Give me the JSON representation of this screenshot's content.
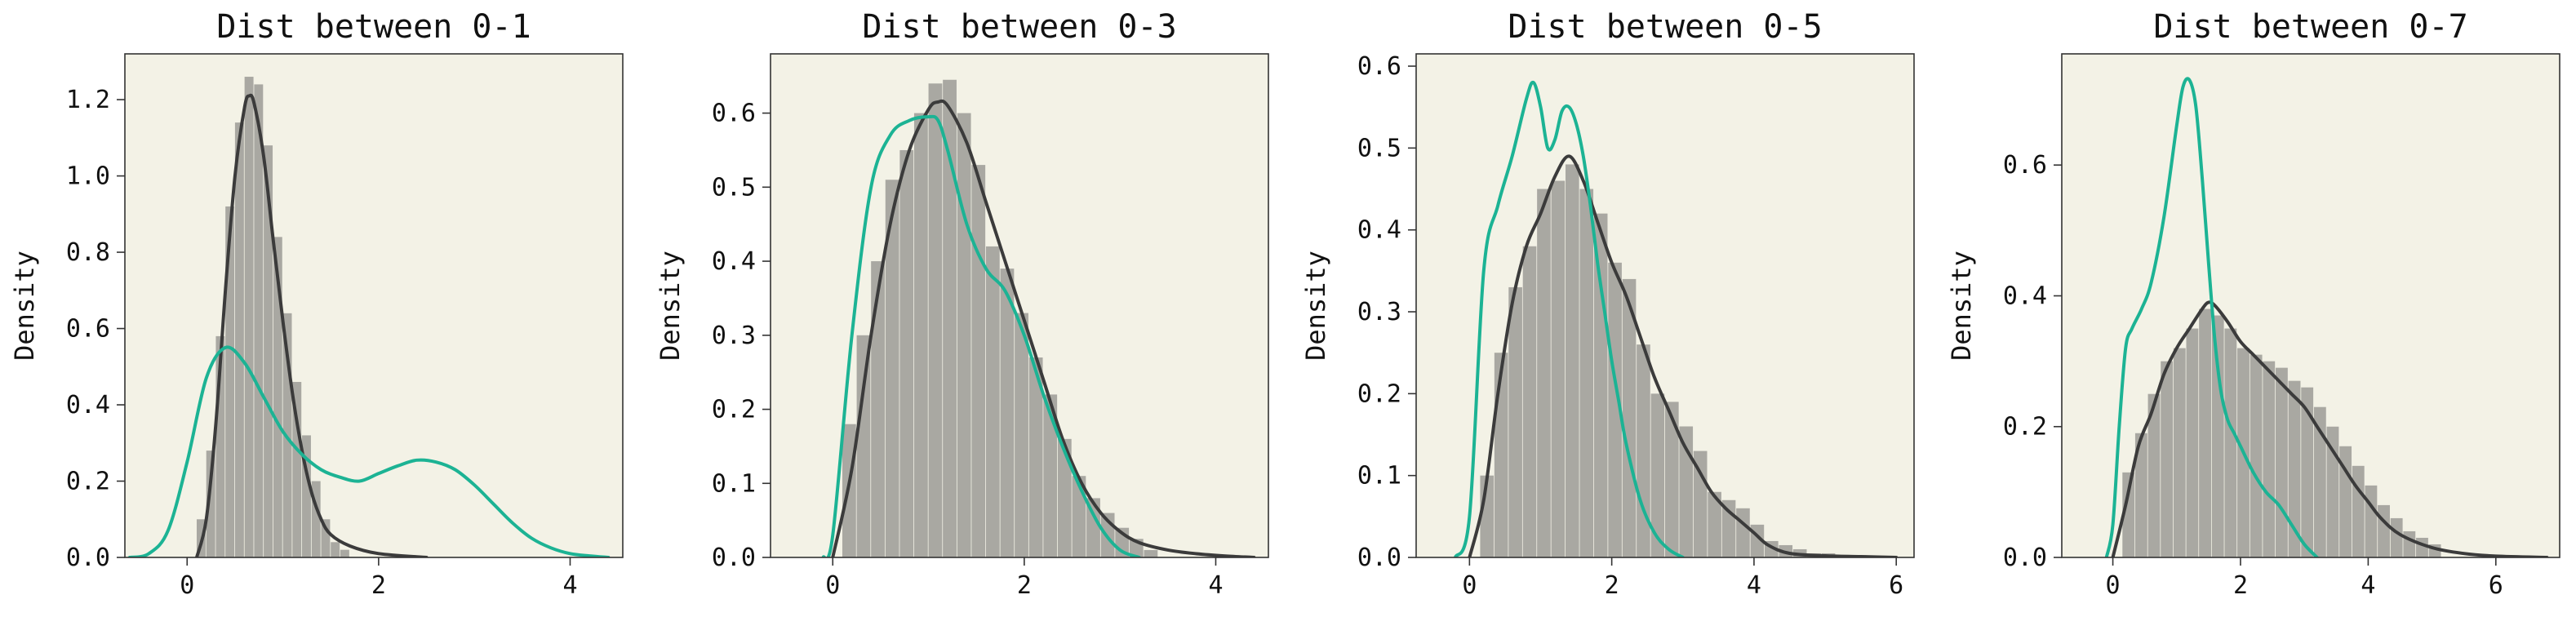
{
  "colors": {
    "plot_background": "#f3f2e6",
    "histogram_fill": "#a9a8a2",
    "kde_dark": "#3b3b3b",
    "kde_teal": "#1cb394",
    "axis": "#333333"
  },
  "chart_data": [
    {
      "type": "area",
      "title": "Dist between 0-1",
      "xlabel": "",
      "ylabel": "Density",
      "xlim": [
        -0.65,
        4.55
      ],
      "ylim": [
        0,
        1.32
      ],
      "xticks": [
        0,
        2,
        4
      ],
      "yticks": [
        0.0,
        0.2,
        0.4,
        0.6,
        0.8,
        1.0,
        1.2
      ],
      "ytick_format": 1,
      "grid": false,
      "histogram": {
        "bin_edges": [
          0.1,
          0.2,
          0.3,
          0.4,
          0.5,
          0.6,
          0.7,
          0.8,
          0.9,
          1.0,
          1.1,
          1.2,
          1.3,
          1.4,
          1.5,
          1.6,
          1.7
        ],
        "values": [
          0.1,
          0.28,
          0.58,
          0.92,
          1.14,
          1.26,
          1.24,
          1.08,
          0.84,
          0.64,
          0.46,
          0.32,
          0.2,
          0.1,
          0.04,
          0.02
        ]
      },
      "series": [
        {
          "color_key": "kde_dark",
          "x": [
            0.1,
            0.2,
            0.3,
            0.4,
            0.5,
            0.6,
            0.65,
            0.7,
            0.8,
            0.9,
            1.0,
            1.1,
            1.2,
            1.3,
            1.4,
            1.5,
            1.7,
            2.0,
            2.5
          ],
          "y": [
            0.0,
            0.1,
            0.35,
            0.7,
            1.0,
            1.18,
            1.21,
            1.19,
            1.05,
            0.83,
            0.62,
            0.43,
            0.28,
            0.17,
            0.1,
            0.06,
            0.03,
            0.01,
            0.0
          ]
        },
        {
          "color_key": "kde_teal",
          "x": [
            -0.6,
            -0.4,
            -0.2,
            0.0,
            0.2,
            0.4,
            0.6,
            0.8,
            1.0,
            1.2,
            1.4,
            1.6,
            1.8,
            2.0,
            2.2,
            2.4,
            2.6,
            2.8,
            3.0,
            3.2,
            3.4,
            3.6,
            3.8,
            4.0,
            4.2,
            4.4
          ],
          "y": [
            0.0,
            0.01,
            0.07,
            0.25,
            0.47,
            0.55,
            0.51,
            0.42,
            0.33,
            0.27,
            0.23,
            0.21,
            0.2,
            0.22,
            0.24,
            0.255,
            0.25,
            0.23,
            0.19,
            0.14,
            0.09,
            0.05,
            0.025,
            0.01,
            0.004,
            0.0
          ]
        }
      ]
    },
    {
      "type": "area",
      "title": "Dist between 0-3",
      "xlabel": "",
      "ylabel": "Density",
      "xlim": [
        -0.65,
        4.55
      ],
      "ylim": [
        0,
        0.68
      ],
      "xticks": [
        0,
        2,
        4
      ],
      "yticks": [
        0.0,
        0.1,
        0.2,
        0.3,
        0.4,
        0.5,
        0.6
      ],
      "ytick_format": 1,
      "grid": false,
      "histogram": {
        "bin_edges": [
          0.1,
          0.25,
          0.4,
          0.55,
          0.7,
          0.85,
          1.0,
          1.15,
          1.3,
          1.45,
          1.6,
          1.75,
          1.9,
          2.05,
          2.2,
          2.35,
          2.5,
          2.65,
          2.8,
          2.95,
          3.1,
          3.25,
          3.4
        ],
        "values": [
          0.18,
          0.3,
          0.4,
          0.51,
          0.55,
          0.6,
          0.64,
          0.645,
          0.6,
          0.53,
          0.42,
          0.39,
          0.33,
          0.27,
          0.22,
          0.16,
          0.11,
          0.08,
          0.06,
          0.04,
          0.025,
          0.01
        ]
      },
      "series": [
        {
          "color_key": "kde_dark",
          "x": [
            0.0,
            0.2,
            0.4,
            0.6,
            0.8,
            1.0,
            1.1,
            1.2,
            1.4,
            1.6,
            1.8,
            2.0,
            2.2,
            2.4,
            2.6,
            2.8,
            3.0,
            3.2,
            3.5,
            3.8,
            4.1,
            4.4
          ],
          "y": [
            0.0,
            0.12,
            0.3,
            0.45,
            0.55,
            0.605,
            0.615,
            0.61,
            0.56,
            0.48,
            0.4,
            0.32,
            0.24,
            0.16,
            0.1,
            0.06,
            0.035,
            0.02,
            0.01,
            0.005,
            0.002,
            0.0
          ]
        },
        {
          "color_key": "kde_teal",
          "x": [
            -0.1,
            0.0,
            0.2,
            0.4,
            0.6,
            0.8,
            1.0,
            1.1,
            1.2,
            1.4,
            1.6,
            1.8,
            2.0,
            2.2,
            2.4,
            2.6,
            2.8,
            3.0,
            3.2
          ],
          "y": [
            0.0,
            0.03,
            0.3,
            0.5,
            0.57,
            0.59,
            0.595,
            0.59,
            0.55,
            0.45,
            0.39,
            0.36,
            0.3,
            0.22,
            0.15,
            0.09,
            0.04,
            0.01,
            0.0
          ]
        }
      ]
    },
    {
      "type": "area",
      "title": "Dist between 0-5",
      "xlabel": "",
      "ylabel": "Density",
      "xlim": [
        -0.75,
        6.25
      ],
      "ylim": [
        0,
        0.615
      ],
      "xticks": [
        0,
        2,
        4,
        6
      ],
      "yticks": [
        0.0,
        0.1,
        0.2,
        0.3,
        0.4,
        0.5,
        0.6
      ],
      "ytick_format": 1,
      "grid": false,
      "histogram": {
        "bin_edges": [
          0.15,
          0.35,
          0.55,
          0.75,
          0.95,
          1.15,
          1.35,
          1.55,
          1.75,
          1.95,
          2.15,
          2.35,
          2.55,
          2.75,
          2.95,
          3.15,
          3.35,
          3.55,
          3.75,
          3.95,
          4.15,
          4.35,
          4.55,
          4.75,
          4.95,
          5.15
        ],
        "values": [
          0.1,
          0.25,
          0.33,
          0.38,
          0.45,
          0.46,
          0.48,
          0.45,
          0.42,
          0.36,
          0.34,
          0.26,
          0.2,
          0.19,
          0.16,
          0.13,
          0.08,
          0.07,
          0.06,
          0.04,
          0.02,
          0.015,
          0.01,
          0.005,
          0.005
        ]
      },
      "series": [
        {
          "color_key": "kde_dark",
          "x": [
            0.0,
            0.2,
            0.4,
            0.6,
            0.8,
            1.0,
            1.2,
            1.4,
            1.6,
            1.8,
            2.0,
            2.2,
            2.4,
            2.6,
            2.8,
            3.0,
            3.2,
            3.4,
            3.6,
            3.8,
            4.0,
            4.2,
            4.5,
            5.0,
            5.5,
            6.0
          ],
          "y": [
            0.0,
            0.07,
            0.2,
            0.31,
            0.38,
            0.42,
            0.465,
            0.49,
            0.46,
            0.41,
            0.36,
            0.32,
            0.27,
            0.22,
            0.18,
            0.14,
            0.11,
            0.08,
            0.06,
            0.045,
            0.03,
            0.015,
            0.005,
            0.002,
            0.001,
            0.0
          ]
        },
        {
          "color_key": "kde_teal",
          "x": [
            -0.2,
            0.0,
            0.2,
            0.4,
            0.6,
            0.8,
            0.9,
            1.0,
            1.1,
            1.2,
            1.3,
            1.4,
            1.5,
            1.6,
            1.7,
            1.8,
            1.9,
            2.0,
            2.1,
            2.2,
            2.4,
            2.6,
            2.8,
            3.0
          ],
          "y": [
            0.0,
            0.05,
            0.35,
            0.43,
            0.49,
            0.56,
            0.58,
            0.55,
            0.5,
            0.51,
            0.545,
            0.55,
            0.53,
            0.49,
            0.43,
            0.36,
            0.3,
            0.24,
            0.19,
            0.14,
            0.07,
            0.03,
            0.01,
            0.0
          ]
        }
      ]
    },
    {
      "type": "area",
      "title": "Dist between 0-7",
      "xlabel": "",
      "ylabel": "Density",
      "xlim": [
        -0.8,
        7.0
      ],
      "ylim": [
        0,
        0.77
      ],
      "xticks": [
        0,
        2,
        4,
        6
      ],
      "yticks": [
        0.0,
        0.2,
        0.4,
        0.6
      ],
      "ytick_format": 1,
      "grid": false,
      "histogram": {
        "bin_edges": [
          0.15,
          0.35,
          0.55,
          0.75,
          0.95,
          1.15,
          1.35,
          1.55,
          1.75,
          1.95,
          2.15,
          2.35,
          2.55,
          2.75,
          2.95,
          3.15,
          3.35,
          3.55,
          3.75,
          3.95,
          4.15,
          4.35,
          4.55,
          4.75,
          4.95,
          5.15
        ],
        "values": [
          0.13,
          0.19,
          0.25,
          0.3,
          0.32,
          0.35,
          0.38,
          0.37,
          0.35,
          0.32,
          0.31,
          0.3,
          0.29,
          0.27,
          0.26,
          0.23,
          0.2,
          0.17,
          0.14,
          0.11,
          0.08,
          0.06,
          0.04,
          0.03,
          0.02
        ]
      },
      "series": [
        {
          "color_key": "kde_dark",
          "x": [
            0.0,
            0.2,
            0.4,
            0.6,
            0.8,
            1.0,
            1.2,
            1.4,
            1.5,
            1.6,
            1.8,
            2.0,
            2.2,
            2.4,
            2.6,
            2.8,
            3.0,
            3.2,
            3.4,
            3.6,
            3.8,
            4.0,
            4.2,
            4.5,
            5.0,
            5.5,
            6.0,
            6.8
          ],
          "y": [
            0.0,
            0.08,
            0.17,
            0.22,
            0.28,
            0.32,
            0.35,
            0.38,
            0.39,
            0.385,
            0.36,
            0.33,
            0.31,
            0.29,
            0.27,
            0.25,
            0.23,
            0.2,
            0.17,
            0.14,
            0.11,
            0.085,
            0.06,
            0.035,
            0.015,
            0.006,
            0.002,
            0.0
          ]
        },
        {
          "color_key": "kde_teal",
          "x": [
            -0.1,
            0.0,
            0.1,
            0.2,
            0.3,
            0.45,
            0.6,
            0.8,
            1.0,
            1.1,
            1.2,
            1.3,
            1.4,
            1.5,
            1.6,
            1.7,
            1.8,
            1.9,
            2.0,
            2.2,
            2.4,
            2.6,
            2.8,
            3.0,
            3.2
          ],
          "y": [
            0.0,
            0.05,
            0.2,
            0.32,
            0.35,
            0.38,
            0.42,
            0.52,
            0.66,
            0.72,
            0.73,
            0.69,
            0.58,
            0.45,
            0.33,
            0.25,
            0.21,
            0.19,
            0.17,
            0.13,
            0.1,
            0.08,
            0.05,
            0.02,
            0.0
          ]
        }
      ]
    }
  ]
}
